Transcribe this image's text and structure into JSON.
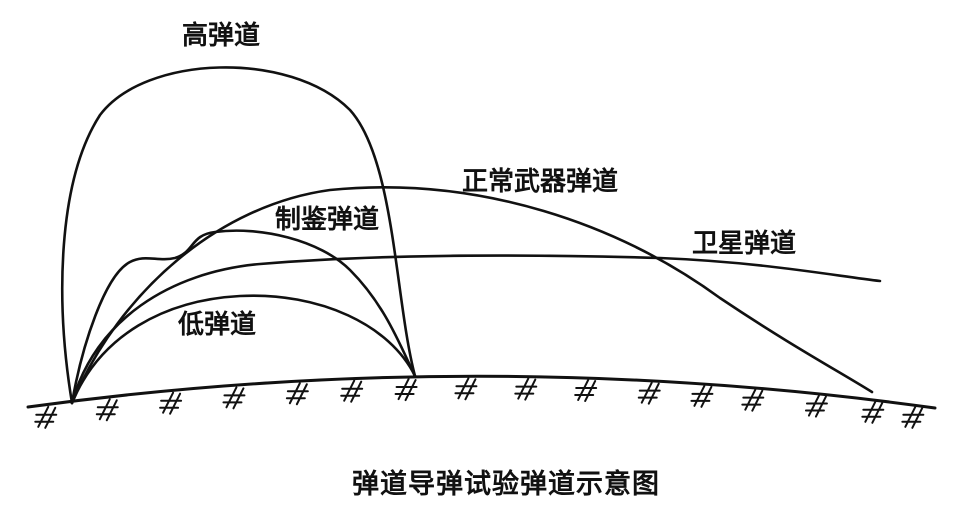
{
  "labels": {
    "high_trajectory": "高弹道",
    "normal_weapon_trajectory": "正常武器弹道",
    "suppressed_trajectory": "制鉴弹道",
    "satellite_trajectory": "卫星弹道",
    "low_trajectory": "低弹道"
  },
  "caption": "弹道导弹试验弹道示意图",
  "colors": {
    "line": "#111111",
    "background": "#ffffff"
  }
}
